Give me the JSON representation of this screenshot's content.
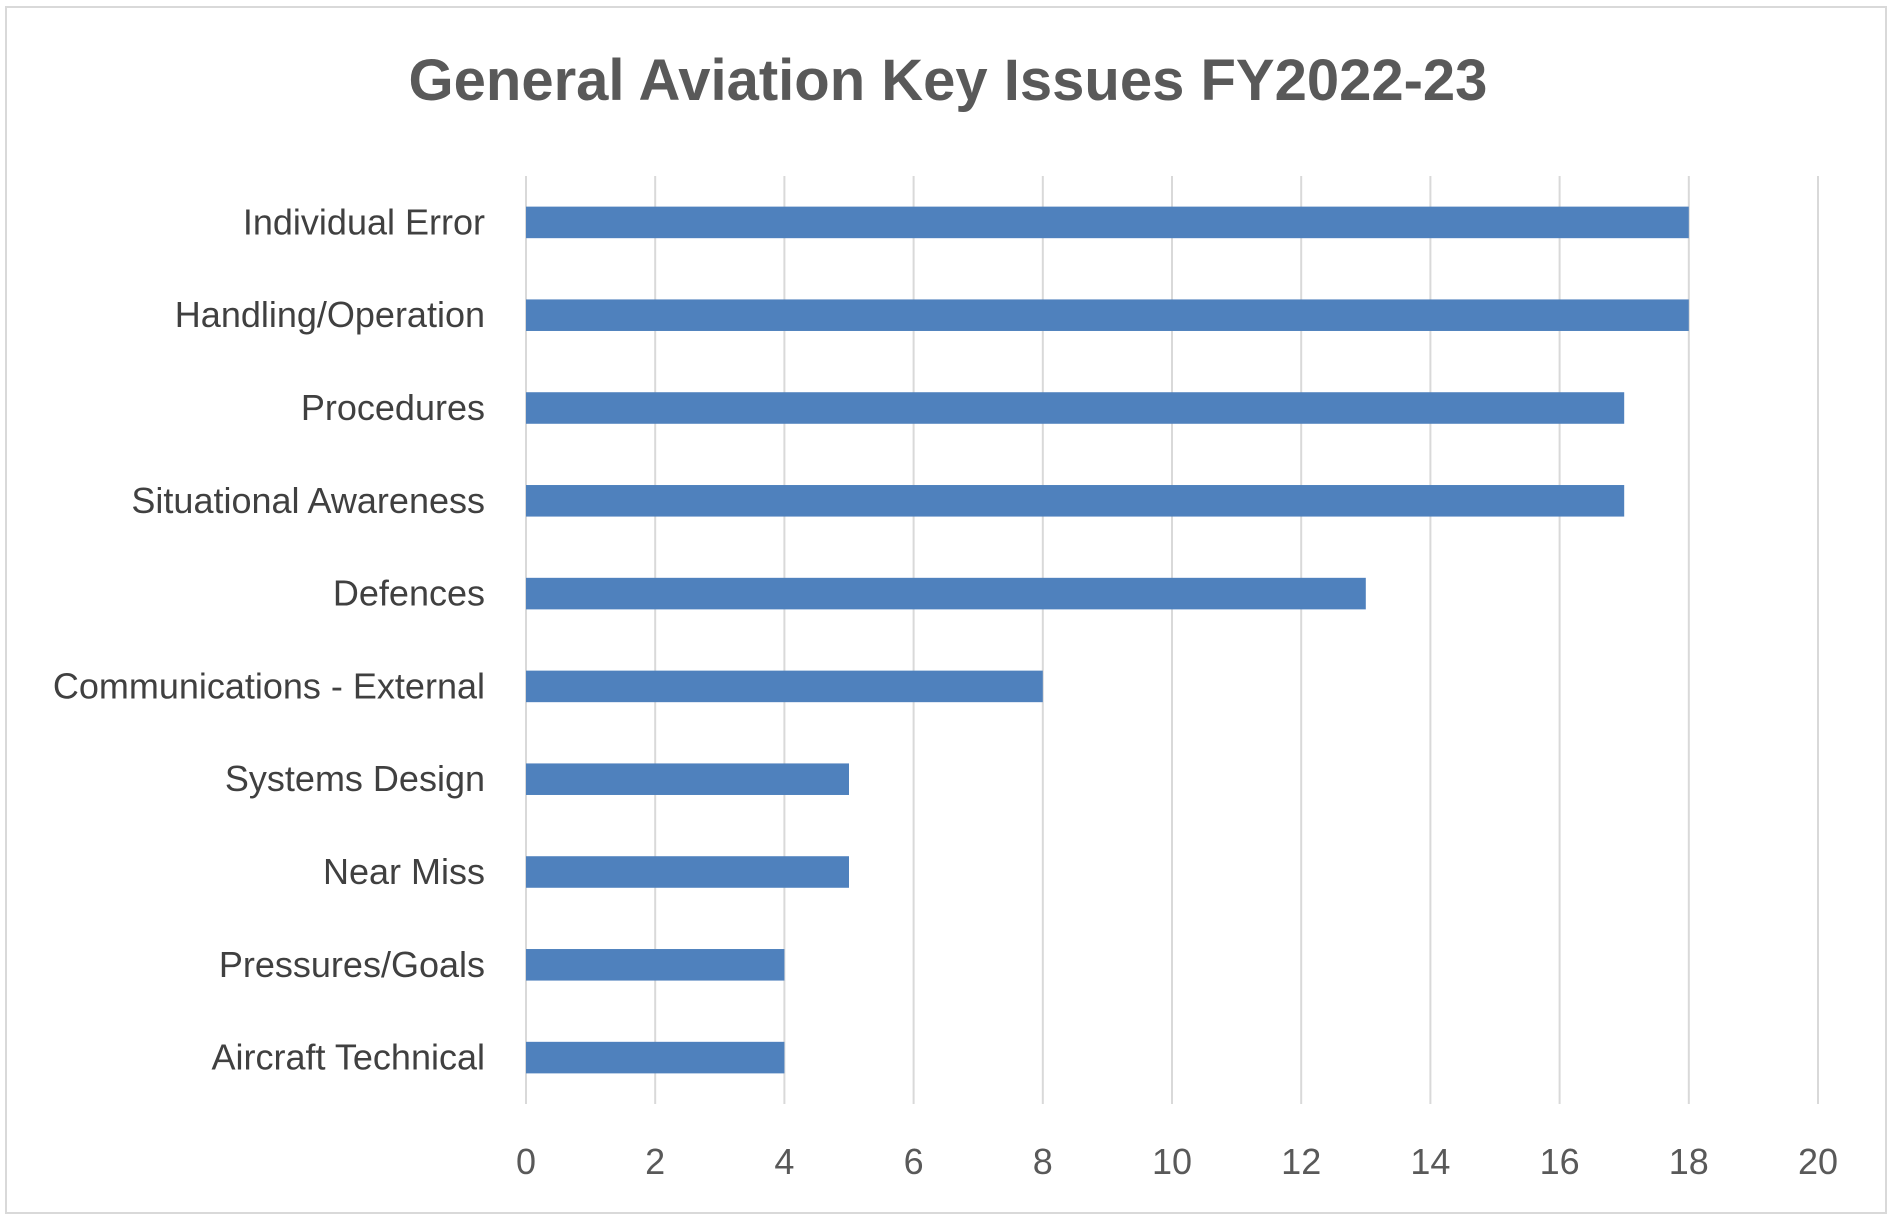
{
  "chart_data": {
    "type": "bar",
    "orientation": "horizontal",
    "title": "General Aviation Key Issues FY2022-23",
    "xlabel": "",
    "ylabel": "",
    "categories": [
      "Individual Error",
      "Handling/Operation",
      "Procedures",
      "Situational Awareness",
      "Defences",
      "Communications - External",
      "Systems Design",
      "Near Miss",
      "Pressures/Goals",
      "Aircraft Technical"
    ],
    "values": [
      18,
      18,
      17,
      17,
      13,
      8,
      5,
      5,
      4,
      4
    ],
    "xlim": [
      0,
      20
    ],
    "xticks": [
      "0",
      "2",
      "4",
      "6",
      "8",
      "10",
      "12",
      "14",
      "16",
      "18",
      "20"
    ],
    "grid": true,
    "legend": "none",
    "bar_color": "#4f81bd"
  }
}
